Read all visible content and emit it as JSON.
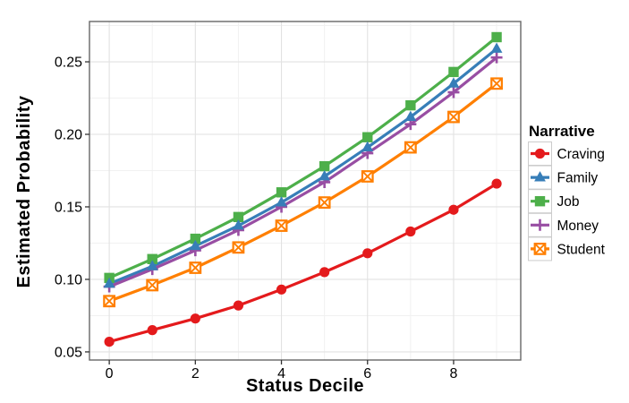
{
  "chart_data": {
    "type": "line",
    "title": "",
    "xlabel": "Status Decile",
    "ylabel": "Estimated Probability",
    "legend_title": "Narrative",
    "legend_position": "right",
    "grid": true,
    "x": [
      0,
      1,
      2,
      3,
      4,
      5,
      6,
      7,
      8,
      9
    ],
    "x_ticks": [
      0,
      2,
      4,
      6,
      8
    ],
    "x_tick_labels": [
      "0",
      "2",
      "4",
      "6",
      "8"
    ],
    "x_minor_ticks": [
      1,
      3,
      5,
      7,
      9
    ],
    "y_ticks": [
      0.05,
      0.1,
      0.15,
      0.2,
      0.25
    ],
    "y_tick_labels": [
      "0.05",
      "0.10",
      "0.15",
      "0.20",
      "0.25"
    ],
    "y_minor_ticks": [
      0.075,
      0.125,
      0.175,
      0.225,
      0.275
    ],
    "xlim": [
      -0.46,
      9.56
    ],
    "ylim": [
      0.0444,
      0.2778
    ],
    "series": [
      {
        "name": "Craving",
        "color": "#E41A1C",
        "marker": "circle",
        "values": [
          0.057,
          0.065,
          0.073,
          0.082,
          0.093,
          0.105,
          0.118,
          0.133,
          0.148,
          0.166
        ]
      },
      {
        "name": "Family",
        "color": "#377EB8",
        "marker": "triangle",
        "values": [
          0.097,
          0.109,
          0.123,
          0.137,
          0.153,
          0.171,
          0.191,
          0.212,
          0.235,
          0.259
        ]
      },
      {
        "name": "Job",
        "color": "#4DAF4A",
        "marker": "square",
        "values": [
          0.101,
          0.114,
          0.128,
          0.143,
          0.16,
          0.178,
          0.198,
          0.22,
          0.243,
          0.267
        ]
      },
      {
        "name": "Money",
        "color": "#984EA3",
        "marker": "plus",
        "values": [
          0.095,
          0.107,
          0.12,
          0.134,
          0.15,
          0.167,
          0.187,
          0.207,
          0.229,
          0.253
        ]
      },
      {
        "name": "Student",
        "color": "#FF7F00",
        "marker": "square-cross",
        "values": [
          0.085,
          0.096,
          0.108,
          0.122,
          0.137,
          0.153,
          0.171,
          0.191,
          0.212,
          0.235
        ]
      }
    ],
    "colors": {
      "grid_major": "#e2e2e2",
      "grid_minor": "#f1f1f1",
      "panel_border": "#666666",
      "tick": "#333333",
      "text": "#000000",
      "panel_bg": "#ffffff",
      "legend_key_border": "#cccccc"
    }
  }
}
